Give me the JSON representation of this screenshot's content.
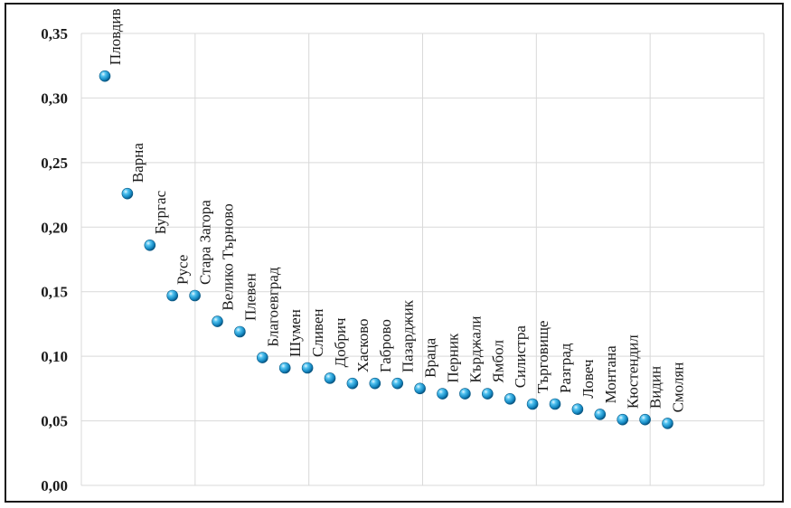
{
  "chart_data": {
    "type": "scatter",
    "title": "",
    "xlabel": "",
    "ylabel": "",
    "ylim": [
      0,
      0.35
    ],
    "yticks": [
      "0,00",
      "0,05",
      "0,10",
      "0,15",
      "0,20",
      "0,25",
      "0,30",
      "0,35"
    ],
    "grid": true,
    "marker_color": "#1a8fc7",
    "points": [
      {
        "label": "Пловдив",
        "value": 0.317
      },
      {
        "label": "Варна",
        "value": 0.226
      },
      {
        "label": "Бургас",
        "value": 0.186
      },
      {
        "label": "Русе",
        "value": 0.147
      },
      {
        "label": "Стара Загора",
        "value": 0.147
      },
      {
        "label": "Велико Търново",
        "value": 0.127
      },
      {
        "label": "Плевен",
        "value": 0.119
      },
      {
        "label": "Благоевград",
        "value": 0.099
      },
      {
        "label": "Шумен",
        "value": 0.091
      },
      {
        "label": "Сливен",
        "value": 0.091
      },
      {
        "label": "Добрич",
        "value": 0.083
      },
      {
        "label": "Хасково",
        "value": 0.079
      },
      {
        "label": "Габрово",
        "value": 0.079
      },
      {
        "label": "Пазарджик",
        "value": 0.079
      },
      {
        "label": "Враца",
        "value": 0.075
      },
      {
        "label": "Перник",
        "value": 0.071
      },
      {
        "label": "Кърджали",
        "value": 0.071
      },
      {
        "label": "Ямбол",
        "value": 0.071
      },
      {
        "label": "Силистра",
        "value": 0.067
      },
      {
        "label": "Търговище",
        "value": 0.063
      },
      {
        "label": "Разград",
        "value": 0.063
      },
      {
        "label": "Ловеч",
        "value": 0.059
      },
      {
        "label": "Монтана",
        "value": 0.055
      },
      {
        "label": "Кюстендил",
        "value": 0.051
      },
      {
        "label": "Видин",
        "value": 0.051
      },
      {
        "label": "Смолян",
        "value": 0.048
      }
    ]
  }
}
